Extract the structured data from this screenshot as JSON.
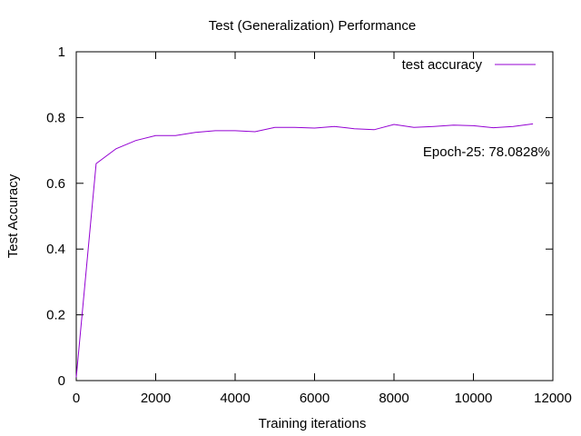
{
  "chart_data": {
    "type": "line",
    "title": "Test (Generalization) Performance",
    "xlabel": "Training iterations",
    "ylabel": "Test Accuracy",
    "xlim": [
      0,
      12000
    ],
    "ylim": [
      0,
      1
    ],
    "xticks": [
      0,
      2000,
      4000,
      6000,
      8000,
      10000,
      12000
    ],
    "xtick_labels": [
      "0",
      "2000",
      "4000",
      "6000",
      "8000",
      "10000",
      "12000"
    ],
    "yticks": [
      0,
      0.2,
      0.4,
      0.6,
      0.8,
      1
    ],
    "ytick_labels": [
      "0",
      "0.2",
      "0.4",
      "0.6",
      "0.8",
      "1"
    ],
    "grid": false,
    "legend_position": "top-right",
    "annotation": "Epoch-25: 78.0828%",
    "series": [
      {
        "name": "test accuracy",
        "color": "#9400d3",
        "x": [
          0,
          500,
          1000,
          1500,
          2000,
          2500,
          3000,
          3500,
          4000,
          4500,
          5000,
          5500,
          6000,
          6500,
          7000,
          7500,
          8000,
          8500,
          9000,
          9500,
          10000,
          10500,
          11000,
          11500
        ],
        "y": [
          0.01,
          0.66,
          0.705,
          0.73,
          0.745,
          0.745,
          0.755,
          0.76,
          0.76,
          0.757,
          0.77,
          0.77,
          0.768,
          0.773,
          0.766,
          0.763,
          0.779,
          0.77,
          0.773,
          0.777,
          0.775,
          0.769,
          0.773,
          0.7808
        ]
      }
    ]
  }
}
